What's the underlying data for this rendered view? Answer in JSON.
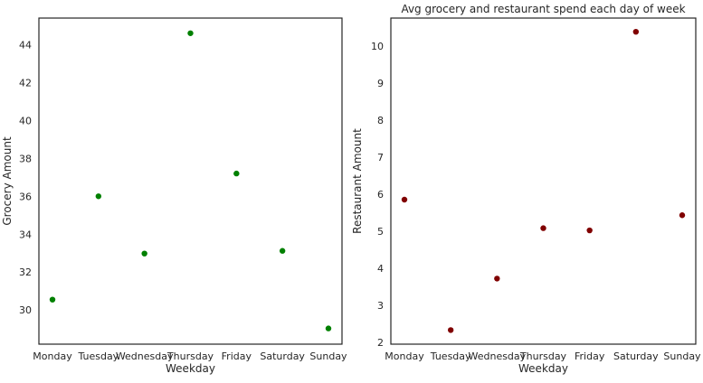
{
  "chart_data": [
    {
      "type": "scatter",
      "title": "",
      "xlabel": "Weekday",
      "ylabel": "Grocery Amount",
      "categories": [
        "Monday",
        "Tuesday",
        "Wednesday",
        "Thursday",
        "Friday",
        "Saturday",
        "Sunday"
      ],
      "values": [
        30.55,
        36.0,
        32.98,
        44.6,
        37.2,
        33.12,
        29.03
      ],
      "color": "#008000",
      "ylim": [
        28.2,
        45.4
      ],
      "yticks": [
        30,
        32,
        34,
        36,
        38,
        40,
        42,
        44
      ],
      "grid": false
    },
    {
      "type": "scatter",
      "title": "Avg grocery and restaurant spend each day of week",
      "xlabel": "Weekday",
      "ylabel": "Restaurant Amount",
      "categories": [
        "Monday",
        "Tuesday",
        "Wednesday",
        "Thursday",
        "Friday",
        "Saturday",
        "Sunday"
      ],
      "values": [
        5.85,
        2.33,
        3.72,
        5.08,
        5.02,
        10.38,
        5.43
      ],
      "color": "#800000",
      "ylim": [
        1.95,
        10.75
      ],
      "yticks": [
        2,
        3,
        4,
        5,
        6,
        7,
        8,
        9,
        10
      ],
      "grid": false
    }
  ]
}
